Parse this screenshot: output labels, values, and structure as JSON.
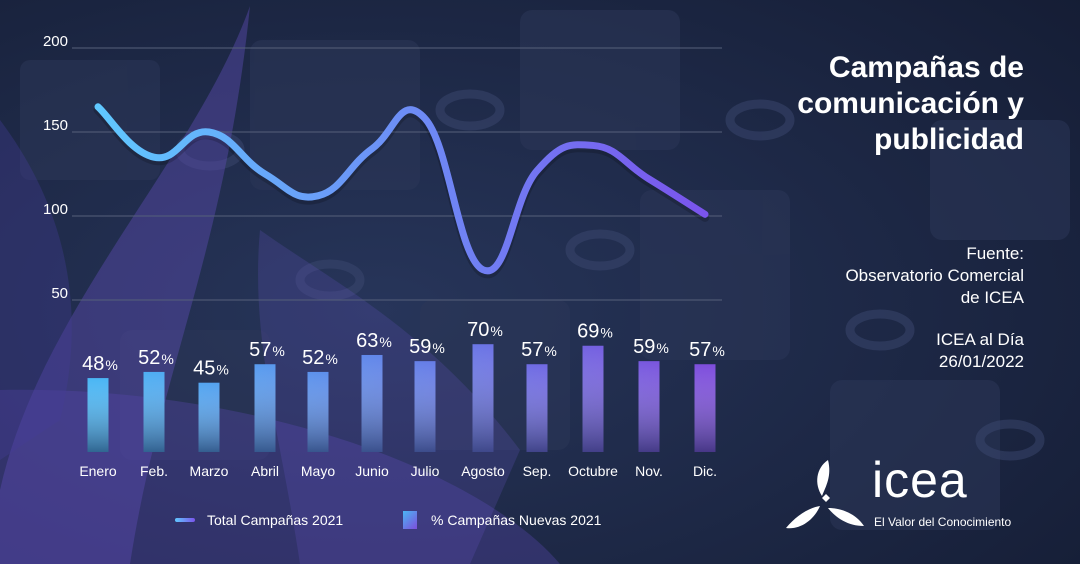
{
  "header": {
    "title_lines": [
      "Campañas de",
      "comunicación y",
      "publicidad"
    ],
    "source_lines": [
      "Fuente:",
      "Observatorio Comercial",
      "de ICEA"
    ],
    "publication_lines": [
      "ICEA al Día",
      "26/01/2022"
    ]
  },
  "brand": {
    "name": "icea",
    "tagline": "El Valor del Conocimiento"
  },
  "colors": {
    "background": "#1a2440",
    "grid": "#56607a",
    "line_start": "#60c8ff",
    "line_end": "#7a54ec",
    "bar_start": "#4ab6f4",
    "bar_end": "#7d4ddc",
    "text": "#ffffff"
  },
  "chart_data": {
    "type": "line+bar",
    "categories": [
      "Enero",
      "Feb.",
      "Marzo",
      "Abril",
      "Mayo",
      "Junio",
      "Julio",
      "Agosto",
      "Sep.",
      "Octubre",
      "Nov.",
      "Dic."
    ],
    "y_ticks": [
      "200",
      "150",
      "100",
      "50"
    ],
    "ylim": [
      50,
      200
    ],
    "grid": true,
    "legend_position": "bottom-left",
    "series": [
      {
        "name": "Total Campañas 2021",
        "type": "line",
        "values": [
          165,
          135,
          150,
          125,
          112,
          140,
          158,
          68,
          127,
          142,
          122,
          101
        ]
      },
      {
        "name": "% Campañas Nuevas 2021",
        "type": "bar",
        "unit": "%",
        "values": [
          48,
          52,
          45,
          57,
          52,
          63,
          59,
          70,
          57,
          69,
          59,
          57
        ],
        "labels": [
          "48",
          "52",
          "45",
          "57",
          "52",
          "63",
          "59",
          "70",
          "57",
          "69",
          "59",
          "57"
        ]
      }
    ]
  }
}
